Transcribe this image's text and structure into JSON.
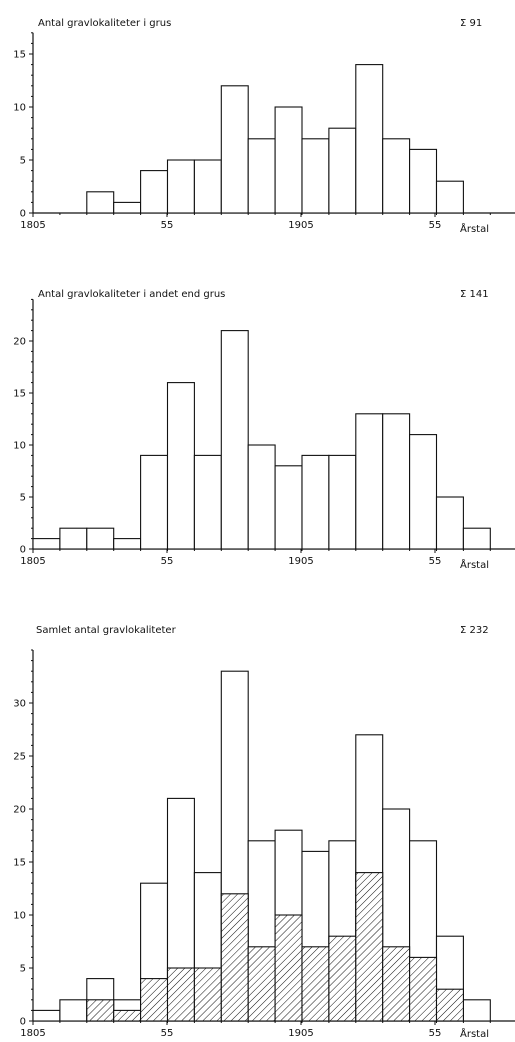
{
  "chart_data": [
    {
      "type": "bar",
      "title": "Antal gravlokaliteter i grus",
      "total_label": "Σ 91",
      "xlabel": "Årstal",
      "x_tick_labels": [
        "1805",
        "55",
        "1905",
        "55"
      ],
      "y_ticks": [
        0,
        5,
        10,
        15
      ],
      "ylim": [
        0,
        17
      ],
      "bin_start": 1805,
      "bin_width": 10,
      "values": [
        0,
        0,
        2,
        1,
        4,
        5,
        5,
        12,
        7,
        10,
        7,
        8,
        14,
        7,
        6,
        3,
        0,
        0
      ]
    },
    {
      "type": "bar",
      "title": "Antal gravlokaliteter i andet end grus",
      "total_label": "Σ 141",
      "xlabel": "Årstal",
      "x_tick_labels": [
        "1805",
        "55",
        "1905",
        "55"
      ],
      "y_ticks": [
        0,
        5,
        10,
        15,
        20
      ],
      "ylim": [
        0,
        24
      ],
      "bin_start": 1805,
      "bin_width": 10,
      "values": [
        1,
        2,
        2,
        1,
        9,
        16,
        9,
        21,
        10,
        8,
        9,
        9,
        13,
        13,
        11,
        5,
        2,
        0
      ]
    },
    {
      "type": "bar",
      "stacked": true,
      "title": "Samlet antal gravlokaliteter",
      "total_label": "Σ 232",
      "xlabel": "Årstal",
      "x_tick_labels": [
        "1805",
        "55",
        "1905",
        "55"
      ],
      "y_ticks": [
        0,
        5,
        10,
        15,
        20,
        25,
        30
      ],
      "ylim": [
        0,
        35
      ],
      "bin_start": 1805,
      "bin_width": 10,
      "values_total": [
        1,
        2,
        4,
        2,
        13,
        21,
        14,
        33,
        17,
        18,
        16,
        17,
        27,
        20,
        17,
        8,
        2,
        0
      ],
      "values_hatched": [
        0,
        0,
        2,
        1,
        4,
        5,
        5,
        12,
        7,
        10,
        7,
        8,
        14,
        7,
        6,
        3,
        0,
        0
      ]
    }
  ]
}
